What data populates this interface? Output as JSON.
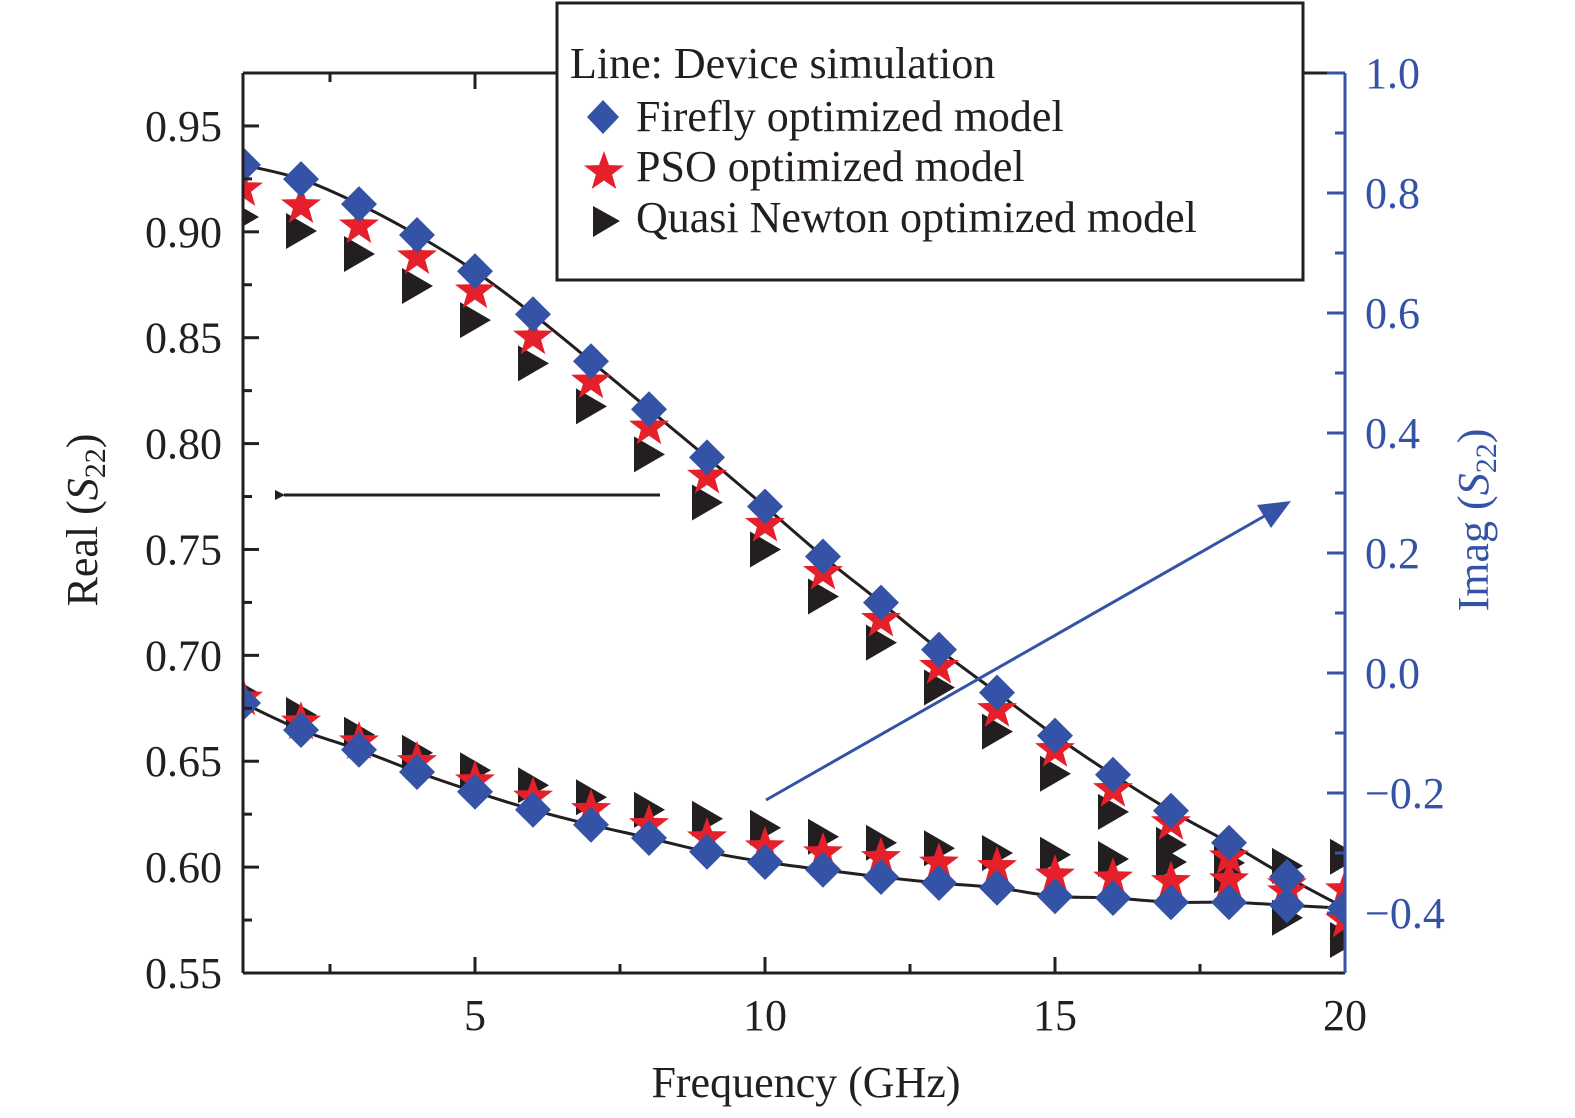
{
  "chart_data": {
    "type": "scatter",
    "title": "",
    "xlabel": "Frequency (GHz)",
    "ylabel_left": {
      "prefix": "Real (",
      "symbol": "S",
      "subscript": "22",
      "suffix": ")"
    },
    "ylabel_right": {
      "prefix": "Imag (",
      "symbol": "S",
      "subscript": "22",
      "suffix": ")"
    },
    "xlim": [
      1,
      20
    ],
    "ylim_left": [
      0.55,
      0.975
    ],
    "ylim_right": [
      -0.5,
      1.0
    ],
    "x_ticks": [
      5,
      10,
      15,
      20
    ],
    "x_tick_labels": [
      "5",
      "10",
      "15",
      "20"
    ],
    "y_left_ticks": [
      0.55,
      0.6,
      0.65,
      0.7,
      0.75,
      0.8,
      0.85,
      0.9,
      0.95
    ],
    "y_left_tick_labels": [
      "0.55",
      "0.60",
      "0.65",
      "0.70",
      "0.75",
      "0.80",
      "0.85",
      "0.90",
      "0.95"
    ],
    "y_right_ticks": [
      -0.4,
      -0.2,
      0.0,
      0.2,
      0.4,
      0.6,
      0.8,
      1.0
    ],
    "y_right_tick_labels": [
      "−0.4",
      "−0.2",
      "0.0",
      "0.2",
      "0.4",
      "0.6",
      "0.8",
      "1.0"
    ],
    "grid": false,
    "colors": {
      "axis": "#231f20",
      "right_axis": "#3553a6",
      "firefly": "#3553a6",
      "pso": "#e5202a",
      "quasi_newton": "#231f20",
      "simulation_line": "#231f20"
    },
    "legend": {
      "position": "top-right",
      "header": "Line: Device simulation",
      "entries": [
        {
          "label": "Firefly optimized model",
          "marker": "diamond",
          "color": "#3553a6"
        },
        {
          "label": "PSO optimized model",
          "marker": "star",
          "color": "#e5202a"
        },
        {
          "label": "Quasi Newton optimized model",
          "marker": "triangle-right",
          "color": "#231f20"
        }
      ]
    },
    "annotations": [
      {
        "type": "arrow",
        "direction": "left",
        "meaning": "upper curves belong to left axis Real(S22)",
        "color": "#231f20"
      },
      {
        "type": "arrow",
        "direction": "up-right",
        "meaning": "lower curves belong to right axis Imag(S22)",
        "color": "#3553a6"
      }
    ],
    "x": [
      1,
      2,
      3,
      4,
      5,
      6,
      7,
      8,
      9,
      10,
      11,
      12,
      13,
      14,
      15,
      16,
      17,
      18,
      19,
      20
    ],
    "series": [
      {
        "name": "Device simulation (Real)",
        "axis": "left",
        "kind": "line",
        "values": [
          0.9316,
          0.9249,
          0.9131,
          0.8985,
          0.8814,
          0.8611,
          0.8389,
          0.8162,
          0.7935,
          0.7703,
          0.7467,
          0.7249,
          0.7027,
          0.6824,
          0.6621,
          0.6436,
          0.6266,
          0.6115,
          0.5954,
          0.5807
        ]
      },
      {
        "name": "Firefly optimized model (Real)",
        "axis": "left",
        "kind": "diamond",
        "values": [
          0.9316,
          0.9249,
          0.9131,
          0.8985,
          0.8814,
          0.8611,
          0.8389,
          0.8162,
          0.7935,
          0.7703,
          0.7467,
          0.7249,
          0.7027,
          0.6824,
          0.6621,
          0.6436,
          0.6266,
          0.6115,
          0.5954,
          0.5807
        ]
      },
      {
        "name": "PSO optimized model (Real)",
        "axis": "left",
        "kind": "star",
        "values": [
          0.9202,
          0.9122,
          0.9027,
          0.8881,
          0.872,
          0.8502,
          0.8294,
          0.8077,
          0.7845,
          0.7618,
          0.7391,
          0.7169,
          0.6947,
          0.6743,
          0.6554,
          0.6365,
          0.6209,
          0.6048,
          0.5916,
          0.5892
        ]
      },
      {
        "name": "Quasi Newton optimized model (Real)",
        "axis": "left",
        "kind": "triangle",
        "values": [
          0.907,
          0.9004,
          0.8895,
          0.8744,
          0.8583,
          0.8379,
          0.8176,
          0.7949,
          0.7722,
          0.75,
          0.7278,
          0.706,
          0.6848,
          0.664,
          0.6441,
          0.6261,
          0.6105,
          0.602,
          0.6006,
          0.6049
        ]
      },
      {
        "name": "Device simulation (Imag)",
        "axis": "right",
        "kind": "line",
        "values": [
          -0.05,
          -0.095,
          -0.128,
          -0.165,
          -0.198,
          -0.228,
          -0.253,
          -0.275,
          -0.298,
          -0.315,
          -0.328,
          -0.34,
          -0.35,
          -0.358,
          -0.372,
          -0.375,
          -0.382,
          -0.382,
          -0.387,
          -0.392
        ]
      },
      {
        "name": "Firefly optimized model (Imag)",
        "axis": "right",
        "kind": "diamond",
        "values": [
          -0.05,
          -0.095,
          -0.128,
          -0.165,
          -0.198,
          -0.228,
          -0.253,
          -0.275,
          -0.298,
          -0.315,
          -0.328,
          -0.34,
          -0.35,
          -0.358,
          -0.372,
          -0.375,
          -0.382,
          -0.382,
          -0.387,
          -0.392
        ]
      },
      {
        "name": "PSO optimized model (Imag)",
        "axis": "right",
        "kind": "star",
        "values": [
          -0.042,
          -0.082,
          -0.115,
          -0.148,
          -0.18,
          -0.207,
          -0.228,
          -0.253,
          -0.275,
          -0.29,
          -0.3,
          -0.308,
          -0.317,
          -0.323,
          -0.337,
          -0.342,
          -0.348,
          -0.345,
          -0.365,
          -0.412
        ]
      },
      {
        "name": "Quasi Newton optimized model (Imag)",
        "axis": "right",
        "kind": "triangle",
        "values": [
          -0.033,
          -0.07,
          -0.103,
          -0.133,
          -0.162,
          -0.187,
          -0.207,
          -0.228,
          -0.243,
          -0.258,
          -0.273,
          -0.283,
          -0.292,
          -0.3,
          -0.303,
          -0.31,
          -0.315,
          -0.337,
          -0.408,
          -0.445
        ]
      }
    ]
  }
}
